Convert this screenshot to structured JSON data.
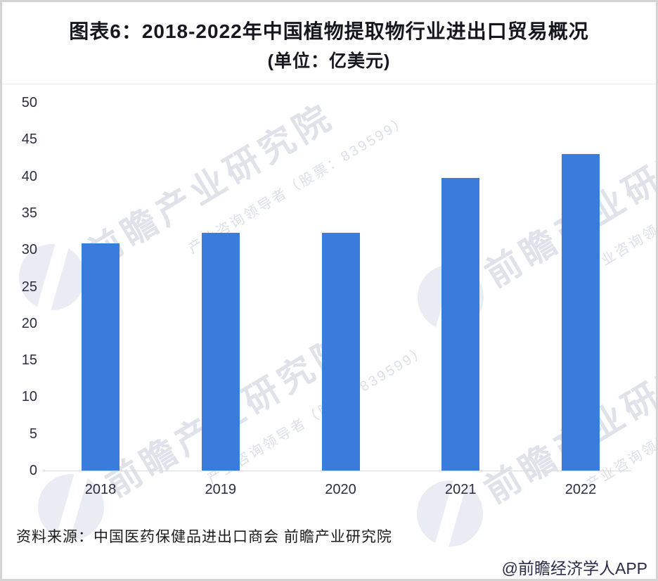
{
  "chart_data": {
    "type": "bar",
    "title": "图表6：2018-2022年中国植物提取物行业进出口贸易概况",
    "unit_label": "(单位：亿美元)",
    "categories": [
      "2018",
      "2019",
      "2020",
      "2021",
      "2022"
    ],
    "values": [
      30.9,
      32.3,
      32.3,
      39.8,
      43.0
    ],
    "ylim": [
      0,
      50
    ],
    "yticks": [
      0,
      5,
      10,
      15,
      20,
      25,
      30,
      35,
      40,
      45,
      50
    ],
    "grid": false,
    "legend": "none",
    "bar_color": "#3a7cdb"
  },
  "watermark": {
    "brand": "前瞻产业研究院",
    "subtext": "产业咨询领导者（股票：839599）",
    "logo_icon": "qianzhan-logo"
  },
  "footer": {
    "source": "资料来源：中国医药保健品进出口商会 前瞻产业研究院",
    "credit": "@前瞻经济学人APP"
  },
  "colors": {
    "bar": "#3a7cdb",
    "axis_line": "#d9d9d9",
    "tick_text": "#2d2d44",
    "title_text": "#16161e",
    "source_text": "#1c1c1c",
    "credit_text": "#2c2c4a",
    "border": "#d4d4d4"
  }
}
